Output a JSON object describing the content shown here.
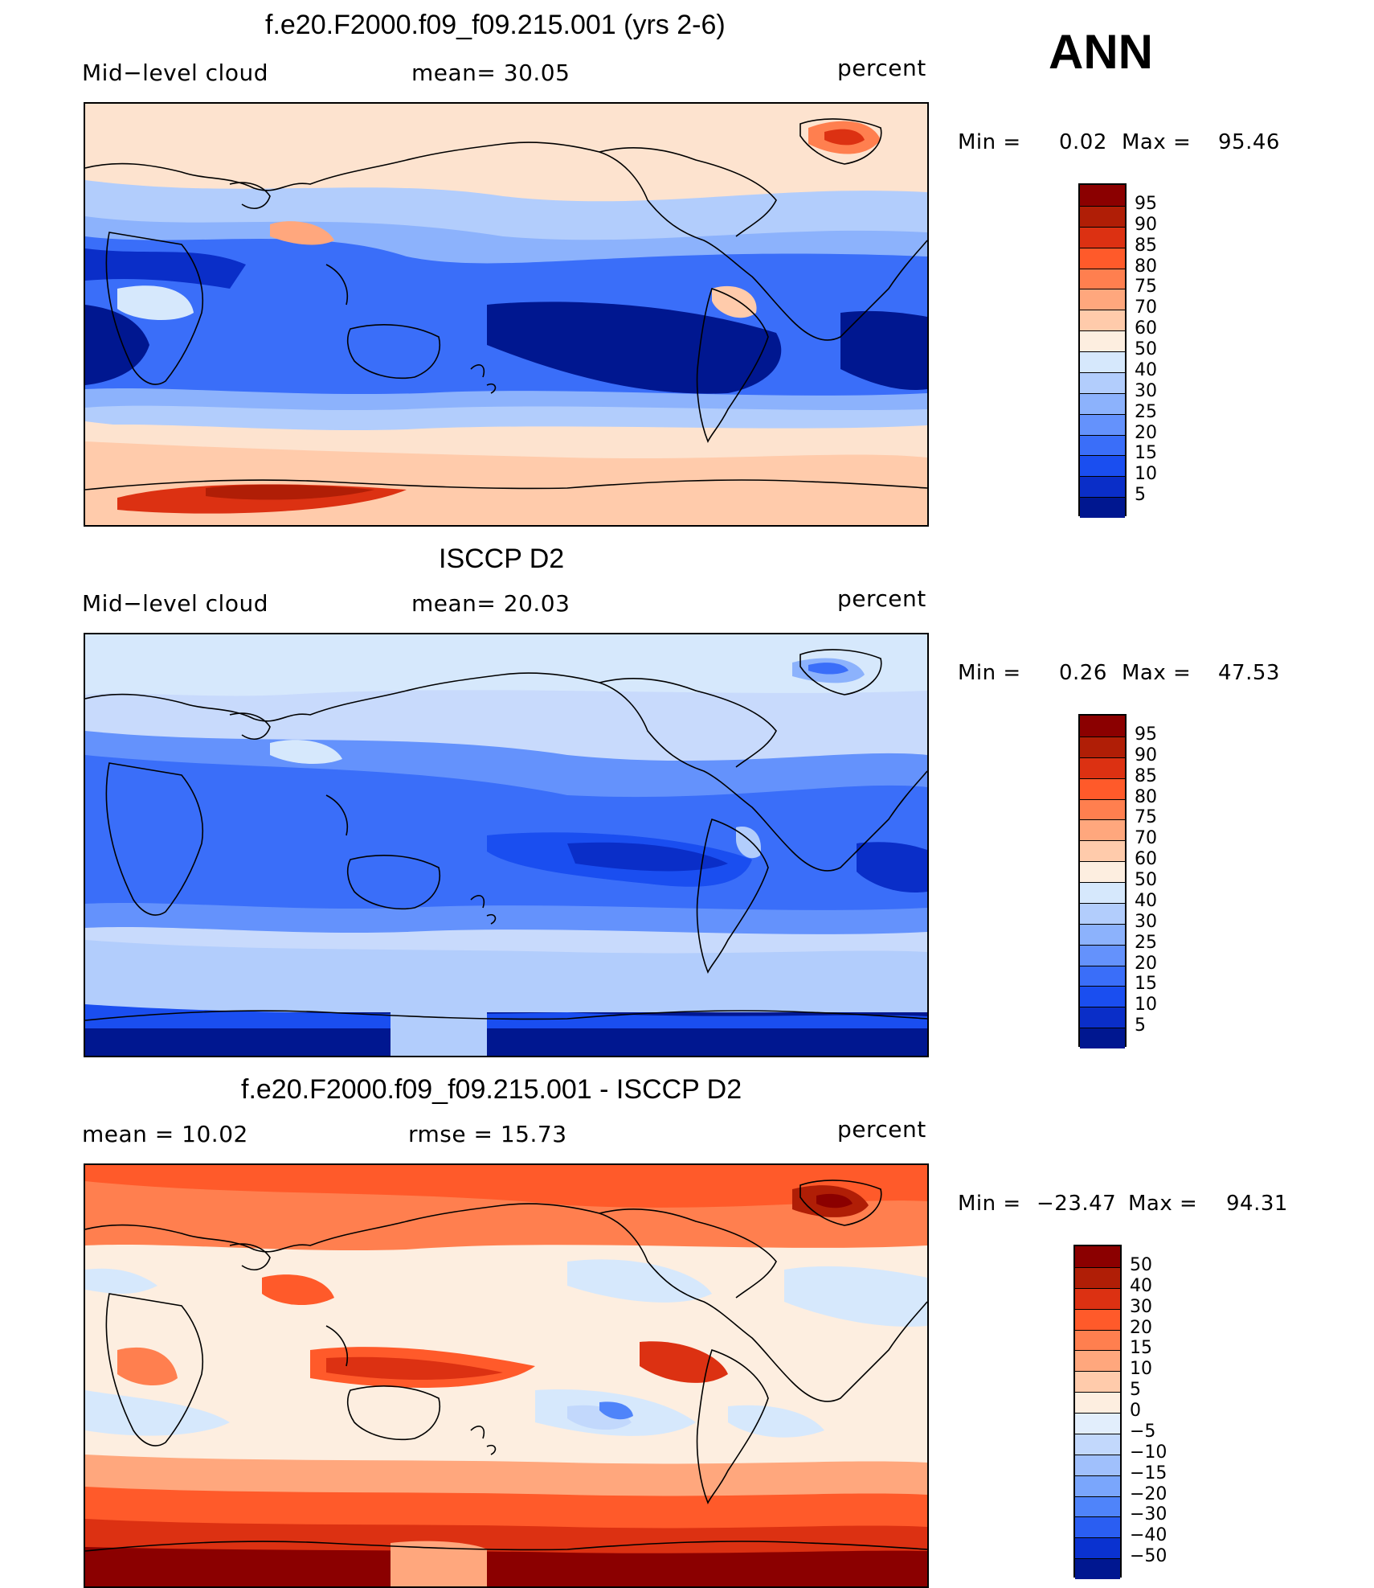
{
  "season": "ANN",
  "panels": [
    {
      "title": "f.e20.F2000.f09_f09.215.001 (yrs 2-6)",
      "left_label": "Mid−level cloud",
      "mid_label": "mean=   30.05",
      "units": "percent",
      "min_label": "Min  =",
      "min_value": "0.02",
      "max_label": "Max  =",
      "max_value": "95.46",
      "bg": "#fde3cf",
      "colorbar": [
        "95",
        "90",
        "85",
        "80",
        "75",
        "70",
        "60",
        "50",
        "40",
        "30",
        "25",
        "20",
        "15",
        "10",
        "5"
      ],
      "colors": [
        "#8b0000",
        "#b01e06",
        "#dc3112",
        "#ff5a2a",
        "#ff7f4f",
        "#ffa77d",
        "#ffcbab",
        "#fdeee0",
        "#d6e8fc",
        "#b2cdfc",
        "#8cb2fc",
        "#6492fc",
        "#3a6ef9",
        "#1a4ef0",
        "#0a2ec8",
        "#001790"
      ]
    },
    {
      "title": "ISCCP D2",
      "left_label": "Mid−level cloud",
      "mid_label": "mean=   20.03",
      "units": "percent",
      "min_label": "Min  =",
      "min_value": "0.26",
      "max_label": "Max  =",
      "max_value": "47.53",
      "bg": "#c8dafc",
      "colorbar": [
        "95",
        "90",
        "85",
        "80",
        "75",
        "70",
        "60",
        "50",
        "40",
        "30",
        "25",
        "20",
        "15",
        "10",
        "5"
      ],
      "colors": [
        "#8b0000",
        "#b01e06",
        "#dc3112",
        "#ff5a2a",
        "#ff7f4f",
        "#ffa77d",
        "#ffcbab",
        "#fdeee0",
        "#d6e8fc",
        "#b2cdfc",
        "#8cb2fc",
        "#6492fc",
        "#3a6ef9",
        "#1a4ef0",
        "#0a2ec8",
        "#001790"
      ]
    },
    {
      "title": "f.e20.F2000.f09_f09.215.001 - ISCCP D2",
      "left_label": "mean  =   10.02",
      "mid_label": "rmse  =   15.73",
      "units": "percent",
      "min_label": "Min  =",
      "min_value": "−23.47",
      "max_label": "Max  =",
      "max_value": "94.31",
      "bg": "#ffd0b4",
      "colorbar": [
        "50",
        "40",
        "30",
        "20",
        "15",
        "10",
        "5",
        "0",
        "−5",
        "−10",
        "−15",
        "−20",
        "−30",
        "−40",
        "−50"
      ],
      "colors": [
        "#8b0000",
        "#b01e06",
        "#dc3112",
        "#ff5a2a",
        "#ff7f4f",
        "#ffa77d",
        "#ffcbab",
        "#fdeee0",
        "#e2eefc",
        "#c2d8fc",
        "#a0c0fc",
        "#7aa6fc",
        "#4f84fa",
        "#2a5ef2",
        "#0a32d0",
        "#001790"
      ]
    }
  ]
}
